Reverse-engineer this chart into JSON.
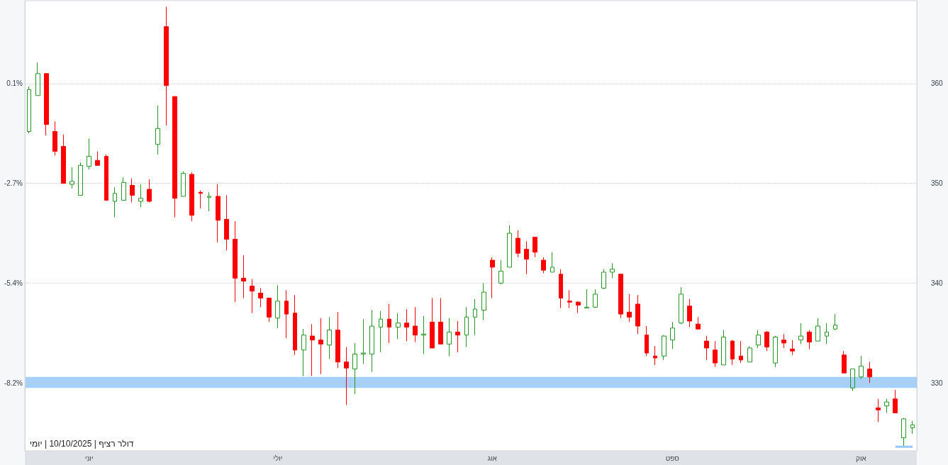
{
  "chart_data": {
    "type": "candlestick",
    "categories": [
      null,
      null,
      null,
      null,
      null,
      null,
      null,
      "יוני",
      null,
      null,
      null,
      null,
      null,
      null,
      null,
      null,
      null,
      null,
      null,
      null,
      null,
      null,
      null,
      null,
      null,
      null,
      null,
      null,
      null,
      "יולי",
      null,
      null,
      null,
      null,
      null,
      null,
      null,
      null,
      null,
      null,
      null,
      null,
      null,
      null,
      null,
      null,
      null,
      null,
      null,
      null,
      null,
      null,
      null,
      null,
      "אוג",
      null,
      null,
      null,
      null,
      null,
      null,
      null,
      null,
      null,
      null,
      null,
      null,
      null,
      null,
      null,
      null,
      null,
      null,
      null,
      null,
      "ספט",
      null,
      null,
      null,
      null,
      null,
      null,
      null,
      null,
      null,
      null,
      null,
      null,
      null,
      null,
      null,
      null,
      null,
      null,
      null,
      null,
      null,
      "אוק",
      null,
      null,
      null,
      null,
      null,
      null
    ],
    "series": [
      {
        "axis": "y2",
        "ohlc": [
          [
            355.2,
            359.7,
            355.0,
            359.4
          ],
          [
            358.8,
            362.1,
            358.8,
            361.0
          ],
          [
            361.0,
            361.0,
            354.8,
            355.9
          ],
          [
            355.2,
            356.2,
            352.8,
            353.2
          ],
          [
            353.7,
            354.9,
            350.0,
            350.0
          ],
          [
            349.9,
            351.6,
            349.5,
            350.2
          ],
          [
            348.8,
            352.1,
            348.8,
            351.8
          ],
          [
            351.7,
            354.5,
            351.4,
            352.7
          ],
          [
            352.3,
            353.2,
            351.8,
            351.8
          ],
          [
            352.7,
            352.9,
            348.3,
            348.3
          ],
          [
            348.2,
            349.6,
            346.6,
            349.0
          ],
          [
            348.3,
            350.6,
            348.3,
            350.1
          ],
          [
            349.8,
            350.5,
            348.1,
            348.8
          ],
          [
            348.2,
            349.9,
            347.6,
            348.5
          ],
          [
            349.4,
            350.4,
            348.1,
            348.2
          ],
          [
            353.9,
            357.8,
            352.9,
            355.5
          ],
          [
            365.7,
            367.7,
            355.8,
            359.8
          ],
          [
            358.7,
            358.7,
            346.6,
            348.5
          ],
          [
            348.7,
            351.2,
            348.7,
            351.0
          ],
          [
            350.9,
            351.1,
            346.2,
            346.8
          ],
          [
            349.1,
            349.3,
            347.5,
            349.0
          ],
          [
            348.6,
            349.1,
            347.2,
            348.7
          ],
          [
            348.7,
            349.9,
            344.1,
            346.3
          ],
          [
            346.4,
            348.8,
            343.3,
            344.4
          ],
          [
            344.4,
            346.2,
            338.1,
            340.5
          ],
          [
            340.5,
            342.8,
            338.5,
            340.2
          ],
          [
            339.7,
            340.4,
            337.0,
            339.2
          ],
          [
            339.0,
            339.5,
            337.6,
            338.5
          ],
          [
            338.5,
            338.5,
            336.1,
            336.6
          ],
          [
            336.5,
            339.8,
            335.5,
            338.2
          ],
          [
            338.2,
            339.3,
            334.5,
            336.9
          ],
          [
            337.0,
            338.8,
            332.8,
            333.3
          ],
          [
            333.3,
            335.4,
            330.7,
            334.8
          ],
          [
            334.7,
            335.9,
            330.7,
            334.3
          ],
          [
            334.3,
            336.5,
            330.9,
            333.9
          ],
          [
            333.8,
            336.6,
            332.4,
            335.3
          ],
          [
            335.3,
            337.1,
            331.5,
            332.1
          ],
          [
            332.1,
            333.6,
            327.8,
            331.5
          ],
          [
            331.4,
            334.0,
            328.9,
            332.9
          ],
          [
            332.9,
            336.4,
            331.9,
            333.0
          ],
          [
            332.9,
            337.3,
            331.1,
            335.7
          ],
          [
            335.6,
            337.2,
            333.1,
            336.4
          ],
          [
            336.4,
            337.9,
            334.0,
            335.6
          ],
          [
            335.6,
            337.0,
            334.4,
            336.0
          ],
          [
            336.0,
            337.4,
            334.2,
            335.6
          ],
          [
            335.7,
            337.6,
            334.1,
            334.8
          ],
          [
            334.8,
            336.7,
            332.9,
            334.9
          ],
          [
            336.1,
            338.5,
            333.5,
            333.5
          ],
          [
            336.1,
            338.5,
            333.9,
            333.9
          ],
          [
            333.9,
            336.5,
            332.7,
            335.1
          ],
          [
            335.1,
            336.2,
            333.1,
            334.8
          ],
          [
            334.8,
            337.6,
            333.6,
            336.6
          ],
          [
            336.6,
            338.4,
            334.8,
            337.4
          ],
          [
            337.3,
            340.0,
            336.3,
            339.1
          ],
          [
            342.3,
            342.6,
            338.5,
            341.6
          ],
          [
            340.0,
            342.3,
            339.9,
            341.2
          ],
          [
            341.6,
            345.8,
            341.6,
            345.0
          ],
          [
            344.5,
            345.3,
            342.6,
            343.0
          ],
          [
            343.4,
            344.2,
            340.9,
            342.4
          ],
          [
            344.6,
            344.6,
            342.6,
            343.1
          ],
          [
            342.3,
            342.6,
            341.0,
            341.3
          ],
          [
            341.1,
            343.1,
            341.1,
            341.6
          ],
          [
            340.9,
            341.4,
            337.5,
            338.5
          ],
          [
            338.2,
            339.3,
            337.5,
            338.1
          ],
          [
            338.1,
            338.2,
            337.0,
            337.8
          ],
          [
            337.5,
            339.4,
            337.5,
            337.6
          ],
          [
            337.6,
            339.4,
            337.5,
            338.9
          ],
          [
            339.5,
            341.4,
            339.4,
            341.1
          ],
          [
            341.1,
            342.0,
            340.5,
            341.4
          ],
          [
            340.9,
            340.9,
            336.5,
            336.9
          ],
          [
            337.1,
            338.9,
            336.1,
            336.6
          ],
          [
            337.9,
            338.8,
            334.9,
            335.7
          ],
          [
            334.8,
            335.7,
            332.7,
            333.0
          ],
          [
            332.7,
            333.7,
            331.8,
            332.5
          ],
          [
            332.7,
            334.8,
            332.3,
            334.7
          ],
          [
            334.3,
            336.1,
            333.4,
            335.5
          ],
          [
            336.0,
            339.6,
            335.9,
            338.9
          ],
          [
            337.7,
            338.4,
            335.6,
            336.2
          ],
          [
            335.9,
            336.6,
            335.4,
            335.4
          ],
          [
            334.2,
            334.7,
            332.3,
            333.5
          ],
          [
            333.3,
            334.2,
            331.6,
            332.0
          ],
          [
            331.8,
            335.3,
            331.8,
            334.6
          ],
          [
            334.2,
            334.3,
            331.8,
            332.4
          ],
          [
            332.7,
            334.2,
            332.0,
            332.3
          ],
          [
            332.1,
            333.7,
            332.1,
            333.5
          ],
          [
            333.8,
            335.3,
            333.5,
            334.8
          ],
          [
            335.1,
            335.2,
            333.2,
            333.6
          ],
          [
            332.0,
            334.7,
            331.6,
            334.6
          ],
          [
            334.3,
            334.9,
            333.5,
            334.0
          ],
          [
            333.4,
            334.3,
            332.8,
            333.2
          ],
          [
            334.3,
            336.0,
            333.9,
            334.7
          ],
          [
            335.1,
            335.3,
            333.4,
            334.1
          ],
          [
            334.2,
            336.5,
            334.2,
            335.7
          ],
          [
            334.7,
            336.0,
            333.9,
            335.1
          ],
          [
            335.4,
            336.9,
            335.3,
            335.8
          ],
          [
            332.8,
            333.2,
            331.0,
            331.0
          ],
          [
            329.5,
            331.4,
            329.2,
            331.4
          ],
          [
            330.6,
            332.7,
            330.4,
            331.7
          ],
          [
            331.4,
            332.1,
            330.0,
            330.6
          ],
          [
            327.5,
            328.4,
            326.1,
            327.3
          ],
          [
            327.7,
            328.4,
            327.0,
            328.1
          ],
          [
            328.4,
            329.3,
            327.0,
            327.0
          ],
          [
            324.5,
            326.5,
            323.6,
            326.4
          ],
          [
            325.5,
            326.2,
            324.9,
            325.8
          ]
        ],
        "colors": [
          "#229922",
          "#229922",
          "#ff0000",
          "#ff0000",
          "#ff0000",
          "#229922",
          "#229922",
          "#229922",
          "#ff0000",
          "#ff0000",
          "#229922",
          "#229922",
          "#ff0000",
          "#229922",
          "#ff0000",
          "#229922",
          "#ff0000",
          "#ff0000",
          "#229922",
          "#ff0000",
          "#ff0000",
          "#229922",
          "#ff0000",
          "#ff0000",
          "#ff0000",
          "#ff0000",
          "#ff0000",
          "#ff0000",
          "#ff0000",
          "#229922",
          "#ff0000",
          "#ff0000",
          "#229922",
          "#ff0000",
          "#ff0000",
          "#229922",
          "#ff0000",
          "#ff0000",
          "#229922",
          "#229922",
          "#229922",
          "#229922",
          "#ff0000",
          "#229922",
          "#ff0000",
          "#ff0000",
          "#229922",
          "#ff0000",
          "#ff0000",
          "#229922",
          "#ff0000",
          "#229922",
          "#229922",
          "#229922",
          "#ff0000",
          "#229922",
          "#229922",
          "#ff0000",
          "#ff0000",
          "#ff0000",
          "#ff0000",
          "#229922",
          "#ff0000",
          "#ff0000",
          "#ff0000",
          "#229922",
          "#229922",
          "#229922",
          "#229922",
          "#ff0000",
          "#ff0000",
          "#ff0000",
          "#ff0000",
          "#ff0000",
          "#229922",
          "#229922",
          "#229922",
          "#ff0000",
          "#ff0000",
          "#ff0000",
          "#ff0000",
          "#229922",
          "#ff0000",
          "#ff0000",
          "#229922",
          "#229922",
          "#ff0000",
          "#229922",
          "#ff0000",
          "#ff0000",
          "#229922",
          "#ff0000",
          "#229922",
          "#229922",
          "#229922",
          "#ff0000",
          "#229922",
          "#229922",
          "#ff0000",
          "#ff0000",
          "#229922",
          "#ff0000",
          "#229922",
          "#229922"
        ]
      },
      {
        "type": "line",
        "axis": "y2",
        "color": "#95c8f8",
        "values": [
          null,
          null,
          null,
          null,
          null,
          null,
          null,
          null,
          null,
          null,
          null,
          null,
          null,
          null,
          null,
          null,
          null,
          null,
          null,
          null,
          null,
          null,
          null,
          null,
          null,
          null,
          null,
          null,
          null,
          null,
          null,
          null,
          null,
          null,
          null,
          null,
          null,
          null,
          null,
          null,
          null,
          null,
          null,
          null,
          null,
          null,
          null,
          null,
          null,
          null,
          null,
          null,
          null,
          null,
          null,
          null,
          null,
          null,
          null,
          null,
          null,
          null,
          null,
          null,
          null,
          null,
          null,
          null,
          null,
          null,
          null,
          null,
          null,
          null,
          null,
          null,
          null,
          null,
          null,
          null,
          null,
          null,
          null,
          null,
          null,
          null,
          null,
          null,
          null,
          null,
          null,
          null,
          null,
          null,
          null,
          null,
          null,
          null,
          null,
          null,
          null,
          323.6,
          323.6,
          323.6
        ]
      }
    ],
    "ylim": [
      -10.11,
      2.43
    ],
    "yticks": [
      {
        "value": -8.22,
        "label": "-8.2%"
      },
      {
        "value": -5.44,
        "label": "-5.4%"
      },
      {
        "value": -2.66,
        "label": "-2.7%"
      },
      {
        "value": 0.12,
        "label": "0.1%"
      }
    ],
    "y2lim": [
      323.2,
      368.3
    ],
    "y2ticks": [
      330,
      340,
      350,
      360
    ],
    "grid": "y",
    "bands": [
      {
        "axis": "y2",
        "from": 329.5,
        "to": 330.6,
        "color": "#95c8f8"
      }
    ],
    "annotations": [
      "דולר רציף | 10/10/2025 | יומי"
    ]
  }
}
